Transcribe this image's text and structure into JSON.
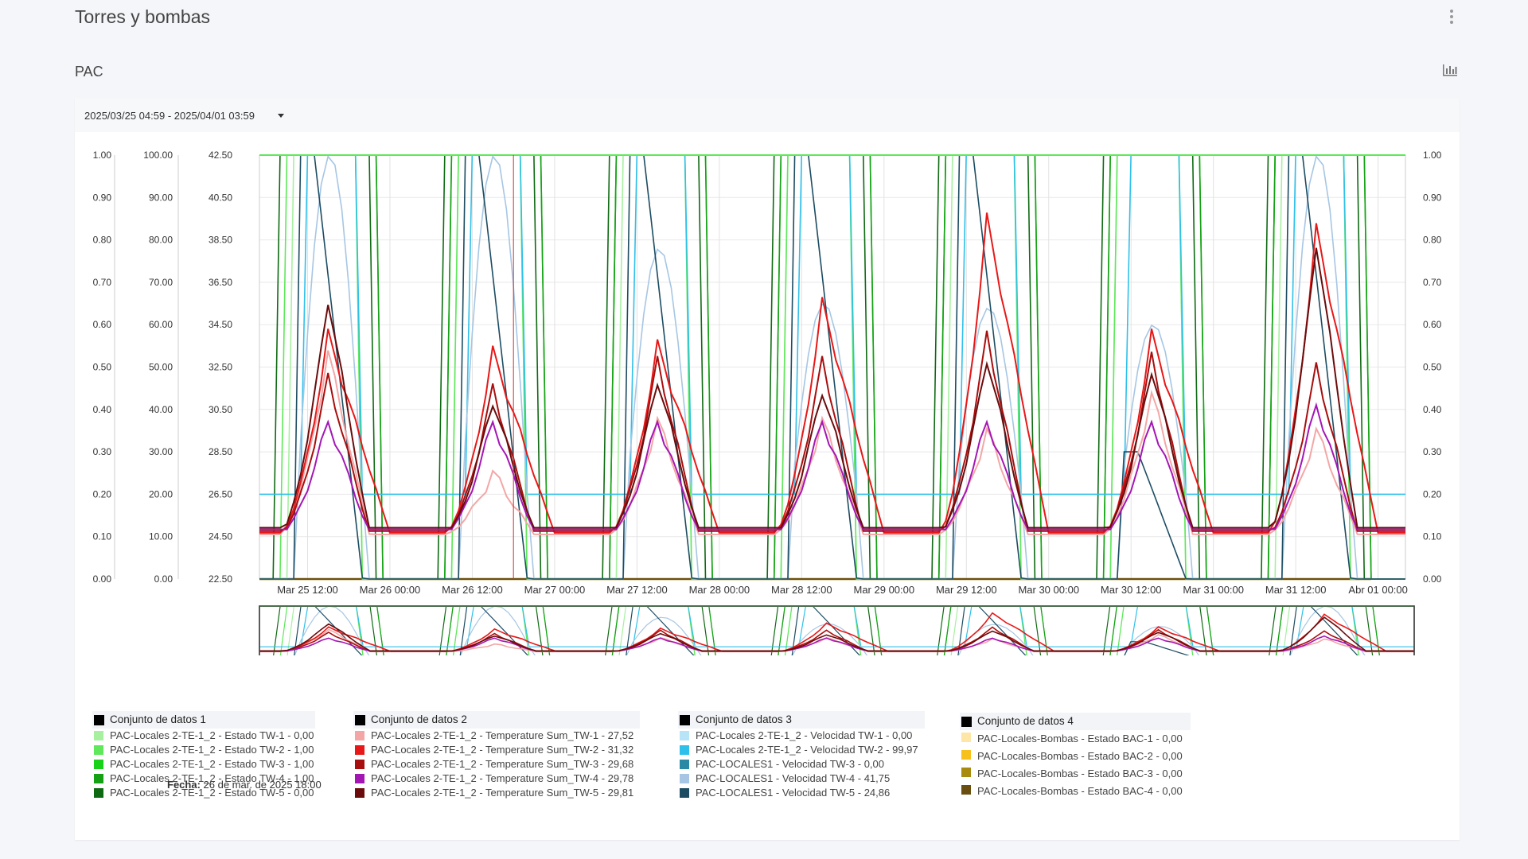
{
  "header": {
    "title": "Torres y bombas",
    "menu_icon": "kebab-menu-icon"
  },
  "section": {
    "title": "PAC",
    "chart_icon": "bar-chart-icon"
  },
  "range": {
    "label": "2025/03/25 04:59 - 2025/04/01 03:59"
  },
  "fecha": {
    "label": "Fecha:",
    "value": "26 de mar. de 2025 18:00"
  },
  "chart_data": {
    "type": "line",
    "x_ticks": [
      "Mar 25 12:00",
      "Mar 26 00:00",
      "Mar 26 12:00",
      "Mar 27 00:00",
      "Mar 27 12:00",
      "Mar 28 00:00",
      "Mar 28 12:00",
      "Mar 29 00:00",
      "Mar 29 12:00",
      "Mar 30 00:00",
      "Mar 30 12:00",
      "Mar 31 00:00",
      "Mar 31 12:00",
      "Abr 01 00:00"
    ],
    "x_range": [
      "2025-03-25 04:59",
      "2025-04-01 03:59"
    ],
    "axes": {
      "state_left": {
        "ticks": [
          "1.00",
          "0.90",
          "0.80",
          "0.70",
          "0.60",
          "0.50",
          "0.40",
          "0.30",
          "0.20",
          "0.10",
          "0.00"
        ],
        "range": [
          0,
          1
        ]
      },
      "speed_left": {
        "ticks": [
          "100.00",
          "90.00",
          "80.00",
          "70.00",
          "60.00",
          "50.00",
          "40.00",
          "30.00",
          "20.00",
          "10.00",
          "0.00"
        ],
        "range": [
          0,
          100
        ]
      },
      "temp_left": {
        "ticks": [
          "42.50",
          "40.50",
          "38.50",
          "36.50",
          "34.50",
          "32.50",
          "30.50",
          "28.50",
          "26.50",
          "24.50",
          "22.50"
        ],
        "range": [
          22.5,
          42.5
        ]
      },
      "state_right": {
        "ticks": [
          "1.00",
          "0.90",
          "0.80",
          "0.70",
          "0.60",
          "0.50",
          "0.40",
          "0.30",
          "0.20",
          "0.10",
          "0.00"
        ],
        "range": [
          0,
          1
        ]
      }
    },
    "cursor_x": "2025-03-26 18:00",
    "day_peaks": [
      {
        "day": "2025-03-25",
        "temp_peaks": [
          33.2,
          34.0,
          32.0,
          30.0,
          35.8
        ],
        "speed4_peak": 100,
        "speed5_peak": 100,
        "speed1_peak": 100
      },
      {
        "day": "2025-03-26",
        "temp_peaks": [
          27.5,
          33.2,
          31.5,
          30.0,
          31.0
        ],
        "speed4_peak": 100,
        "speed5_peak": 100,
        "speed1_peak": 100
      },
      {
        "day": "2025-03-27",
        "temp_peaks": [
          30.0,
          33.5,
          32.8,
          30.0,
          32.0
        ],
        "speed4_peak": 78,
        "speed5_peak": 100,
        "speed1_peak": 100
      },
      {
        "day": "2025-03-28",
        "temp_peaks": [
          30.0,
          35.5,
          32.8,
          30.0,
          31.5
        ],
        "speed4_peak": 65,
        "speed5_peak": 100,
        "speed1_peak": 100
      },
      {
        "day": "2025-03-29",
        "temp_peaks": [
          29.5,
          39.5,
          34.0,
          30.0,
          33.0
        ],
        "speed4_peak": 64,
        "speed5_peak": 100,
        "speed1_peak": 100
      },
      {
        "day": "2025-03-30",
        "temp_peaks": [
          31.2,
          34.0,
          33.0,
          30.0,
          32.5
        ],
        "speed4_peak": 60,
        "speed5_peak": 30,
        "speed1_peak": 100
      },
      {
        "day": "2025-03-31",
        "temp_peaks": [
          29.5,
          39.0,
          32.5,
          30.8,
          38.5
        ],
        "speed4_peak": 100,
        "speed5_peak": 100,
        "speed1_peak": 100
      }
    ],
    "legends": [
      {
        "title": "Conjunto de datos 1",
        "items": [
          {
            "name": "PAC-Locales 2-TE-1_2 - Estado TW-1 - 0,00",
            "color": "#a6f0a0"
          },
          {
            "name": "PAC-Locales 2-TE-1_2 - Estado TW-2 - 1,00",
            "color": "#5ee85a"
          },
          {
            "name": "PAC-Locales 2-TE-1_2 - Estado TW-3 - 1,00",
            "color": "#18d118"
          },
          {
            "name": "PAC-Locales 2-TE-1_2 - Estado TW-4 - 1,00",
            "color": "#16a016"
          },
          {
            "name": "PAC-Locales 2-TE-1_2 - Estado TW-5 - 0,00",
            "color": "#0e6a12"
          }
        ]
      },
      {
        "title": "Conjunto de datos 2",
        "items": [
          {
            "name": "PAC-Locales 2-TE-1_2 - Temperature Sum_TW-1 - 27,52",
            "color": "#f4a6a6"
          },
          {
            "name": "PAC-Locales 2-TE-1_2 - Temperature Sum_TW-2 - 31,32",
            "color": "#e81818"
          },
          {
            "name": "PAC-Locales 2-TE-1_2 - Temperature Sum_TW-3 - 29,68",
            "color": "#a80e0e"
          },
          {
            "name": "PAC-Locales 2-TE-1_2 - Temperature Sum_TW-4 - 29,78",
            "color": "#a416b4"
          },
          {
            "name": "PAC-Locales 2-TE-1_2 - Temperature Sum_TW-5 - 29,81",
            "color": "#6a0c0c"
          }
        ]
      },
      {
        "title": "Conjunto de datos 3",
        "items": [
          {
            "name": "PAC-Locales 2-TE-1_2 - Velocidad TW-1 - 0,00",
            "color": "#b8e4f8"
          },
          {
            "name": "PAC-Locales 2-TE-1_2 - Velocidad TW-2 - 99,97",
            "color": "#2ec0ea"
          },
          {
            "name": "PAC-LOCALES1 - Velocidad TW-3 - 0,00",
            "color": "#2a8aa6"
          },
          {
            "name": "PAC-LOCALES1 - Velocidad TW-4 - 41,75",
            "color": "#a6c6e4"
          },
          {
            "name": "PAC-LOCALES1 - Velocidad TW-5 - 24,86",
            "color": "#1c4c62"
          }
        ]
      },
      {
        "title": "Conjunto de datos 4",
        "items": [
          {
            "name": "PAC-Locales-Bombas - Estado BAC-1 - 0,00",
            "color": "#fde6a6"
          },
          {
            "name": "PAC-Locales-Bombas - Estado BAC-2 - 0,00",
            "color": "#f8c01c"
          },
          {
            "name": "PAC-Locales-Bombas - Estado BAC-3 - 0,00",
            "color": "#a88a0e"
          },
          {
            "name": "PAC-Locales-Bombas - Estado BAC-4 - 0,00",
            "color": "#6a4e10"
          }
        ]
      }
    ]
  }
}
